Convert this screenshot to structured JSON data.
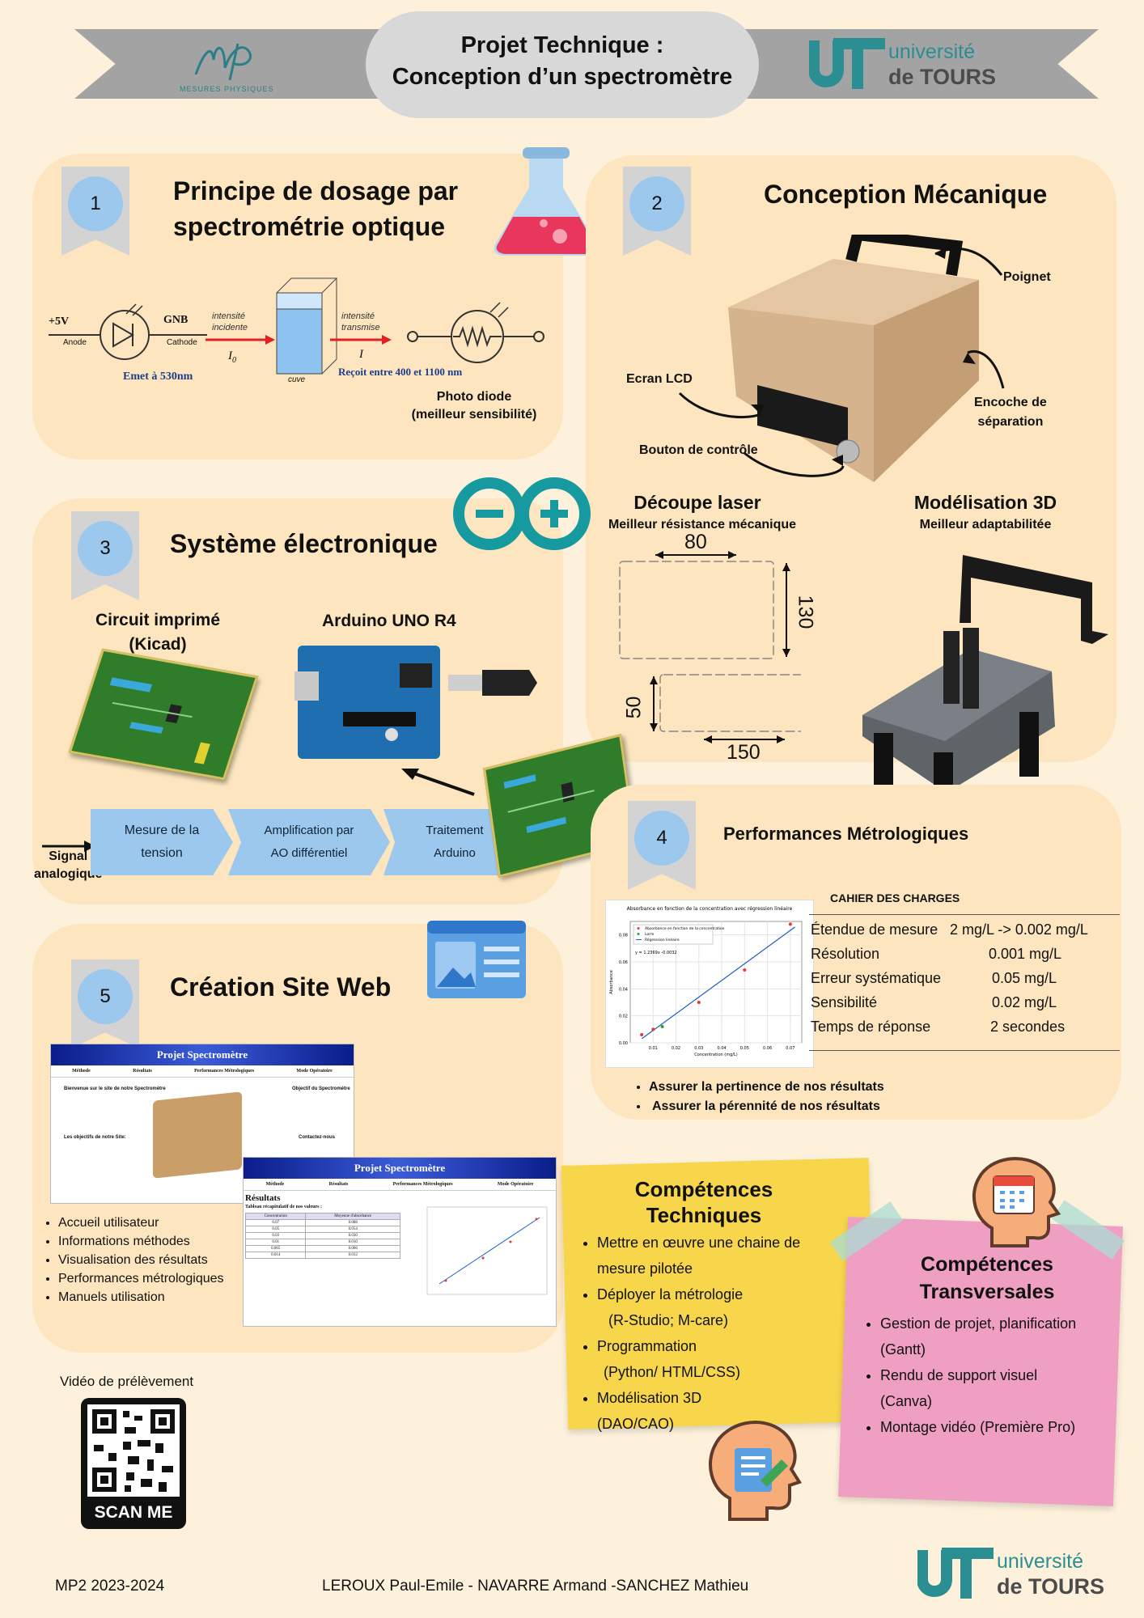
{
  "header": {
    "title_line1": "Projet Technique :",
    "title_line2": "Conception d’un spectromètre",
    "logo_mp_text": "MESURES PHYSIQUES",
    "univ_line1": "université",
    "univ_line2": "de TOURS"
  },
  "s1": {
    "number": "1",
    "title_line1": "Principe de dosage par",
    "title_line2": "spectrométrie optique",
    "plus5v": "+5V",
    "anode": "Anode",
    "gnb": "GNB",
    "cathode": "Cathode",
    "emet": "Emet à 530nm",
    "incident": "intensité incidente",
    "i0": "I",
    "i0_sub": "0",
    "transmise": "intensité transmise",
    "i": "I",
    "cuve": "cuve",
    "recoit": "Reçoit entre 400 et 1100 nm",
    "photodiode_line1": "Photo diode",
    "photodiode_line2": "(meilleur sensibilité)"
  },
  "s2": {
    "number": "2",
    "title": "Conception Mécanique",
    "poignet": "Poignet",
    "ecran": "Ecran LCD",
    "encoche_line1": "Encoche de",
    "encoche_line2": "séparation",
    "bouton": "Bouton de contrôle",
    "decoupe_title": "Découpe laser",
    "decoupe_sub": "Meilleur résistance mécanique",
    "modelisation_title": "Modélisation 3D",
    "modelisation_sub": "Meilleur adaptabilitée",
    "dim_80": "80",
    "dim_130": "130",
    "dim_50": "50",
    "dim_150": "150"
  },
  "s3": {
    "number": "3",
    "title": "Système électronique",
    "circuit_line1": "Circuit imprimé",
    "circuit_line2": "(Kicad)",
    "arduino": "Arduino UNO R4",
    "signal_line1": "Signal",
    "signal_line2": "analogique",
    "step1_line1": "Mesure de la",
    "step1_line2": "tension",
    "step2_line1": "Amplification par",
    "step2_line2": "AO différentiel",
    "step3_line1": "Traitement",
    "step3_line2": "Arduino"
  },
  "s4": {
    "number": "4",
    "title": "Performances Métrologiques",
    "cahier": "CAHIER DES CHARGES",
    "specs": [
      {
        "label": "Étendue de mesure",
        "value": "2 mg/L -> 0.002 mg/L"
      },
      {
        "label": "Résolution",
        "value": "0.001 mg/L"
      },
      {
        "label": "Erreur systématique",
        "value": "0.05 mg/L"
      },
      {
        "label": "Sensibilité",
        "value": "0.02 mg/L"
      },
      {
        "label": "Temps de réponse",
        "value": "2 secondes"
      }
    ],
    "bullets": [
      "Assurer la pertinence de nos résultats",
      "Assurer la pérennité de nos résultats"
    ],
    "plot_title": "Absorbance en fonction de la concentration avec régression linéaire",
    "plot_legend": [
      "Absorbance en fonction de la concentration",
      "Lorm",
      "Régression linéaire"
    ],
    "plot_equation": "y = 1.2369x -0.0032",
    "plot_xlabel": "Concentration (mg/L)",
    "plot_ylabel": "Absorbance"
  },
  "s5": {
    "number": "5",
    "title": "Création Site Web",
    "site_title": "Projet Spectromètre",
    "nav": [
      "Méthode",
      "Résultats",
      "Performances Métrologiques",
      "Mode Opératoire"
    ],
    "welcome": "Bienvenue sur le site de notre Spectromètre",
    "objectif": "Objectif du Spectromètre",
    "objectifs_site": "Les objectifs de notre Site:",
    "contacts": "Contactez-nous",
    "resultats": "Résultats",
    "tableau": "Tableau récapitulatif de nos valeurs :",
    "col1": "Concentration",
    "col2": "Moyenne d'absorbance",
    "rows": [
      [
        "0.07",
        "0.088"
      ],
      [
        "0.05",
        "0.054"
      ],
      [
        "0.03",
        "0.030"
      ],
      [
        "0.01",
        "0.010"
      ],
      [
        "0.005",
        "0.006"
      ],
      [
        "0.014",
        "0.012"
      ]
    ],
    "features": [
      "Accueil utilisateur",
      "Informations méthodes",
      "Visualisation des résultats",
      "Performances métrologiques",
      "Manuels utilisation"
    ]
  },
  "qr": {
    "label": "Vidéo de prélèvement",
    "scan": "SCAN ME"
  },
  "tech": {
    "title_line1": "Compétences",
    "title_line2": "Techniques",
    "items": [
      {
        "l1": "Mettre en œuvre une chaine de",
        "l2": "mesure pilotée"
      },
      {
        "l1": "Déployer la métrologie",
        "l2": "(R-Studio; M-care)"
      },
      {
        "l1": "Programmation",
        "l2": "(Python/ HTML/CSS)"
      },
      {
        "l1": "Modélisation 3D",
        "l2": "(DAO/CAO)"
      }
    ]
  },
  "transv": {
    "title_line1": "Compétences",
    "title_line2": "Transversales",
    "items": [
      {
        "l1": "Gestion de projet, planification",
        "l2": "(Gantt)"
      },
      {
        "l1": " Rendu de support visuel",
        "l2": "(Canva)"
      },
      {
        "l1": "Montage vidéo (Première Pro)",
        "l2": ""
      }
    ]
  },
  "footer": {
    "year": "MP2 2023-2024",
    "authors": "LEROUX Paul-Emile - NAVARRE Armand -SANCHEZ Mathieu"
  },
  "chart_data": {
    "type": "scatter",
    "title": "Absorbance en fonction de la concentration avec régression linéaire",
    "xlabel": "Concentration (mg/L)",
    "ylabel": "Absorbance",
    "xlim": [
      0.0,
      0.075
    ],
    "ylim": [
      0.0,
      0.09
    ],
    "x_ticks": [
      "0.01",
      "0.02",
      "0.03",
      "0.04",
      "0.05",
      "0.06",
      "0.07"
    ],
    "y_ticks": [
      "0.00",
      "0.02",
      "0.04",
      "0.06",
      "0.08"
    ],
    "series": [
      {
        "name": "Absorbance en fonction de la concentration",
        "x": [
          0.005,
          0.01,
          0.03,
          0.05,
          0.07
        ],
        "y": [
          0.006,
          0.01,
          0.03,
          0.054,
          0.088
        ],
        "color": "#e53935"
      },
      {
        "name": "Lorm",
        "x": [
          0.014
        ],
        "y": [
          0.012
        ],
        "color": "#2e9e3f"
      },
      {
        "name": "Régression linéaire",
        "line": {
          "slope": 1.2369,
          "intercept": -0.0032
        },
        "color": "#1e5fc4"
      }
    ],
    "equation": "y = 1.2369x -0.0032",
    "grid": true,
    "legend": "top-left"
  }
}
